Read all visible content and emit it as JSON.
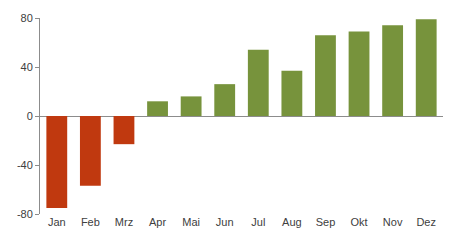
{
  "chart_data": {
    "type": "bar",
    "categories": [
      "Jan",
      "Feb",
      "Mrz",
      "Apr",
      "Mai",
      "Jun",
      "Jul",
      "Aug",
      "Sep",
      "Okt",
      "Nov",
      "Dez"
    ],
    "values": [
      -75,
      -57,
      -23,
      12,
      16,
      26,
      54,
      37,
      66,
      69,
      74,
      79
    ],
    "colors": [
      "#c0390f",
      "#c0390f",
      "#c0390f",
      "#77933c",
      "#77933c",
      "#77933c",
      "#77933c",
      "#77933c",
      "#77933c",
      "#77933c",
      "#77933c",
      "#77933c"
    ],
    "ylim": [
      -80,
      80
    ],
    "yticks": [
      -80,
      -40,
      0,
      40,
      80
    ],
    "grid": false
  }
}
